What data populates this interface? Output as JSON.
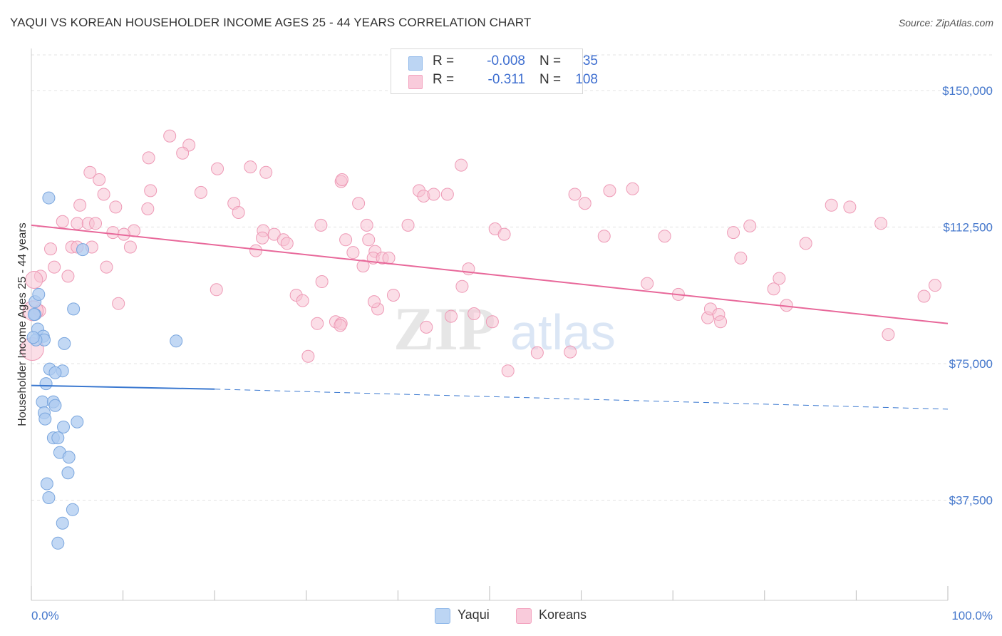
{
  "title": "YAQUI VS KOREAN HOUSEHOLDER INCOME AGES 25 - 44 YEARS CORRELATION CHART",
  "source": "Source: ZipAtlas.com",
  "watermark": {
    "zip": "ZIP",
    "atlas": "atlas"
  },
  "legend": {
    "r_label": "R =",
    "n_label": "N =",
    "rows": [
      {
        "name": "Yaqui",
        "r": "-0.008",
        "n": "35",
        "color": "#8fb8ea"
      },
      {
        "name": "Koreans",
        "r": "-0.311",
        "n": "108",
        "color": "#f3a3bf"
      }
    ]
  },
  "colors": {
    "yaqui_fill": "#aecbf0",
    "yaqui_stroke": "#7aa6de",
    "yaqui_line": "#3a78d0",
    "korean_fill": "#f7c2d3",
    "korean_stroke": "#ee9ab6",
    "korean_line": "#e8689a"
  },
  "chart_data": {
    "type": "scatter",
    "title": "YAQUI VS KOREAN HOUSEHOLDER INCOME AGES 25 - 44 YEARS CORRELATION CHART",
    "xlabel": "",
    "ylabel": "Householder Income Ages 25 - 44 years",
    "xlim": [
      0,
      100
    ],
    "ylim": [
      10000,
      160000
    ],
    "x_tick_labels": [
      "0.0%",
      "100.0%"
    ],
    "y_ticks": [
      37500,
      75000,
      112500,
      150000
    ],
    "y_tick_labels": [
      "$37,500",
      "$75,000",
      "$112,500",
      "$150,000"
    ],
    "grid": true,
    "series": [
      {
        "name": "Yaqui",
        "trend": {
          "x0": 0,
          "y0": 69000,
          "x1": 20,
          "y1": 68000,
          "dashed_to_x": 100,
          "dashed_to_y": 62500
        },
        "points": [
          [
            1.9,
            120500
          ],
          [
            5.6,
            106300
          ],
          [
            0.4,
            92000
          ],
          [
            0.8,
            94000
          ],
          [
            4.6,
            90000
          ],
          [
            0.4,
            88500
          ],
          [
            0.7,
            84500
          ],
          [
            1.3,
            82500
          ],
          [
            1.4,
            81500
          ],
          [
            3.6,
            80500
          ],
          [
            0.5,
            81500
          ],
          [
            15.8,
            81200
          ],
          [
            2.0,
            73500
          ],
          [
            3.4,
            73000
          ],
          [
            2.6,
            72500
          ],
          [
            1.6,
            69500
          ],
          [
            1.2,
            64500
          ],
          [
            2.4,
            64500
          ],
          [
            2.6,
            63500
          ],
          [
            1.4,
            61500
          ],
          [
            1.5,
            59800
          ],
          [
            5.0,
            59000
          ],
          [
            3.5,
            57600
          ],
          [
            2.4,
            54600
          ],
          [
            2.9,
            54600
          ],
          [
            3.1,
            50600
          ],
          [
            4.1,
            49300
          ],
          [
            4.0,
            45000
          ],
          [
            1.7,
            42000
          ],
          [
            1.9,
            38200
          ],
          [
            4.5,
            34900
          ],
          [
            3.4,
            31200
          ],
          [
            2.9,
            25700
          ],
          [
            0.2,
            82200
          ],
          [
            0.3,
            88500
          ]
        ]
      },
      {
        "name": "Koreans",
        "trend": {
          "x0": 0,
          "y0": 113000,
          "x1": 100,
          "y1": 86000
        },
        "points": [
          [
            6.4,
            127500
          ],
          [
            7.4,
            125500
          ],
          [
            7.9,
            121500
          ],
          [
            5.3,
            118500
          ],
          [
            9.2,
            118000
          ],
          [
            12.7,
            117500
          ],
          [
            3.4,
            114000
          ],
          [
            5.0,
            113500
          ],
          [
            6.2,
            113500
          ],
          [
            7.0,
            113500
          ],
          [
            11.2,
            111500
          ],
          [
            8.9,
            111000
          ],
          [
            10.1,
            110500
          ],
          [
            4.4,
            107000
          ],
          [
            5.0,
            107000
          ],
          [
            6.6,
            107000
          ],
          [
            10.8,
            107000
          ],
          [
            2.1,
            106500
          ],
          [
            2.5,
            101500
          ],
          [
            8.2,
            101500
          ],
          [
            1.0,
            99000
          ],
          [
            4.0,
            99000
          ],
          [
            0.9,
            89500
          ],
          [
            9.5,
            91500
          ],
          [
            13.0,
            122500
          ],
          [
            12.8,
            131500
          ],
          [
            15.1,
            137500
          ],
          [
            17.2,
            135000
          ],
          [
            16.5,
            132800
          ],
          [
            18.5,
            122000
          ],
          [
            20.3,
            128500
          ],
          [
            22.1,
            119000
          ],
          [
            22.6,
            116500
          ],
          [
            23.9,
            129000
          ],
          [
            25.6,
            127500
          ],
          [
            25.3,
            111500
          ],
          [
            26.5,
            110500
          ],
          [
            25.2,
            109500
          ],
          [
            27.5,
            109000
          ],
          [
            27.9,
            108000
          ],
          [
            24.5,
            106000
          ],
          [
            20.2,
            95300
          ],
          [
            28.9,
            93800
          ],
          [
            29.6,
            92300
          ],
          [
            30.2,
            77000
          ],
          [
            31.2,
            86000
          ],
          [
            31.7,
            97500
          ],
          [
            33.2,
            86500
          ],
          [
            33.8,
            86000
          ],
          [
            33.7,
            85500
          ],
          [
            34.3,
            109000
          ],
          [
            35.1,
            105500
          ],
          [
            36.2,
            101800
          ],
          [
            36.8,
            109000
          ],
          [
            37.5,
            105800
          ],
          [
            37.3,
            104000
          ],
          [
            38.3,
            104000
          ],
          [
            39.0,
            104000
          ],
          [
            39.5,
            93800
          ],
          [
            37.8,
            90000
          ],
          [
            33.8,
            125000
          ],
          [
            33.9,
            125500
          ],
          [
            35.7,
            119000
          ],
          [
            36.6,
            113000
          ],
          [
            31.6,
            113000
          ],
          [
            37.4,
            92000
          ],
          [
            41.1,
            113000
          ],
          [
            42.3,
            122500
          ],
          [
            42.8,
            121000
          ],
          [
            43.9,
            121500
          ],
          [
            45.4,
            121500
          ],
          [
            43.1,
            85000
          ],
          [
            45.8,
            88000
          ],
          [
            46.9,
            129500
          ],
          [
            47.7,
            101000
          ],
          [
            47.0,
            96200
          ],
          [
            48.3,
            88700
          ],
          [
            50.3,
            86500
          ],
          [
            50.6,
            112000
          ],
          [
            51.6,
            110500
          ],
          [
            52.0,
            73000
          ],
          [
            55.2,
            78000
          ],
          [
            58.8,
            78200
          ],
          [
            59.3,
            121500
          ],
          [
            60.4,
            119000
          ],
          [
            62.5,
            110000
          ],
          [
            63.1,
            122500
          ],
          [
            65.6,
            123000
          ],
          [
            67.2,
            97000
          ],
          [
            69.1,
            110000
          ],
          [
            70.6,
            94000
          ],
          [
            73.8,
            87600
          ],
          [
            74.1,
            90000
          ],
          [
            75.0,
            88500
          ],
          [
            75.2,
            86500
          ],
          [
            76.6,
            111000
          ],
          [
            77.4,
            104000
          ],
          [
            78.4,
            112800
          ],
          [
            81.0,
            95500
          ],
          [
            81.6,
            98400
          ],
          [
            82.4,
            91000
          ],
          [
            84.5,
            108000
          ],
          [
            87.3,
            118500
          ],
          [
            89.3,
            118000
          ],
          [
            92.7,
            113500
          ],
          [
            93.5,
            83000
          ],
          [
            97.4,
            93500
          ],
          [
            98.6,
            96500
          ]
        ]
      }
    ]
  }
}
